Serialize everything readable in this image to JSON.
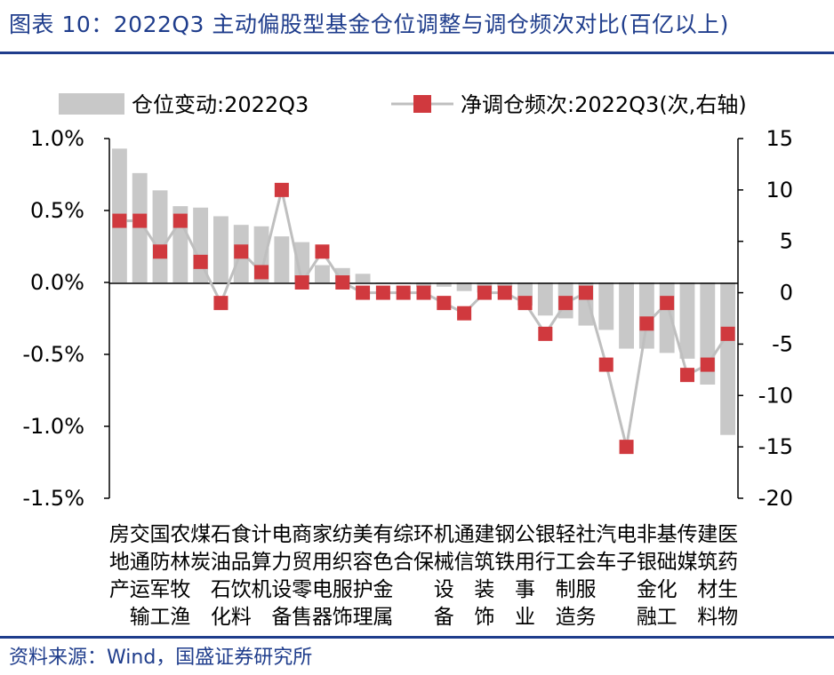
{
  "header": {
    "title": "图表 10：2022Q3 主动偏股型基金仓位调整与调仓频次对比(百亿以上)",
    "source": "资料来源：Wind，国盛证券研究所"
  },
  "colors": {
    "brand": "#1f3d8c",
    "bar": "#c8c8c8",
    "line": "#bfbfbf",
    "marker": "#d0393e"
  },
  "chart_data": {
    "type": "bar+line",
    "title": "",
    "legend": {
      "position": "top",
      "items": [
        "仓位变动:2022Q3",
        "净调仓频次:2022Q3(次,右轴)"
      ]
    },
    "left_axis": {
      "ticks": [
        "1.0%",
        "0.5%",
        "0.0%",
        "-0.5%",
        "-1.0%",
        "-1.5%"
      ],
      "range": [
        -1.5,
        1.0
      ]
    },
    "right_axis": {
      "ticks": [
        "15",
        "10",
        "5",
        "0",
        "-5",
        "-10",
        "-15",
        "-20"
      ],
      "range": [
        -20,
        15
      ]
    },
    "categories": [
      [
        "房",
        "地",
        "产"
      ],
      [
        "交",
        "通",
        "运",
        "输"
      ],
      [
        "国",
        "防",
        "军",
        "工"
      ],
      [
        "农",
        "林",
        "牧",
        "渔"
      ],
      [
        "煤",
        "炭"
      ],
      [
        "石",
        "油",
        "石",
        "化"
      ],
      [
        "食",
        "品",
        "饮",
        "料"
      ],
      [
        "计",
        "算",
        "机"
      ],
      [
        "电",
        "力",
        "设",
        "备"
      ],
      [
        "商",
        "贸",
        "零",
        "售"
      ],
      [
        "家",
        "用",
        "电",
        "器"
      ],
      [
        "纺",
        "织",
        "服",
        "饰"
      ],
      [
        "美",
        "容",
        "护",
        "理"
      ],
      [
        "有",
        "色",
        "金",
        "属"
      ],
      [
        "综",
        "合"
      ],
      [
        "环",
        "保"
      ],
      [
        "机",
        "械",
        "设",
        "备"
      ],
      [
        "通",
        "信"
      ],
      [
        "建",
        "筑",
        "装",
        "饰"
      ],
      [
        "钢",
        "铁"
      ],
      [
        "公",
        "用",
        "事",
        "业"
      ],
      [
        "银",
        "行"
      ],
      [
        "轻",
        "工",
        "制",
        "造"
      ],
      [
        "社",
        "会",
        "服",
        "务"
      ],
      [
        "汽",
        "车"
      ],
      [
        "电",
        "子"
      ],
      [
        "非",
        "银",
        "金",
        "融"
      ],
      [
        "基",
        "础",
        "化",
        "工"
      ],
      [
        "传",
        "媒"
      ],
      [
        "建",
        "筑",
        "材",
        "料"
      ],
      [
        "医",
        "药",
        "生",
        "物"
      ]
    ],
    "series": [
      {
        "name": "仓位变动:2022Q3",
        "type": "bar",
        "axis": "left",
        "values": [
          0.93,
          0.76,
          0.64,
          0.53,
          0.52,
          0.46,
          0.4,
          0.39,
          0.32,
          0.28,
          0.12,
          0.1,
          0.06,
          -0.01,
          -0.01,
          -0.03,
          -0.03,
          -0.06,
          -0.07,
          -0.03,
          -0.16,
          -0.23,
          -0.25,
          -0.3,
          -0.33,
          -0.46,
          -0.46,
          -0.49,
          -0.53,
          -0.71,
          -1.06
        ]
      },
      {
        "name": "净调仓频次:2022Q3(次,右轴)",
        "type": "line",
        "axis": "right",
        "values": [
          7,
          7,
          4,
          7,
          3,
          -1,
          4,
          2,
          10,
          1,
          4,
          1,
          0,
          0,
          0,
          0,
          -1,
          -2,
          0,
          0,
          -1,
          -4,
          -1,
          0,
          -7,
          -15,
          -3,
          -1,
          -8,
          -7,
          -4
        ]
      }
    ]
  }
}
